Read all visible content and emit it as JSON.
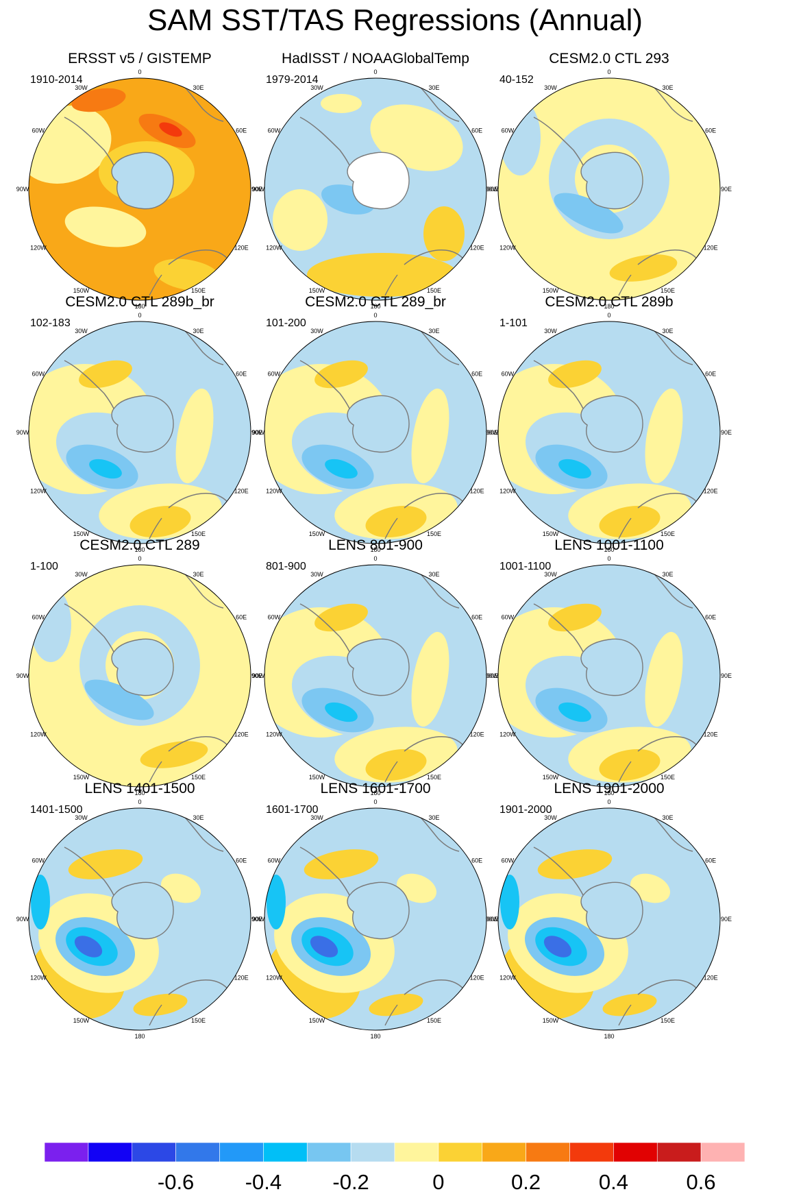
{
  "title": "SAM SST/TAS Regressions (Annual)",
  "colors": {
    "neg6": "#2323d9",
    "neg5": "#3a6fe6",
    "neg4": "#2e9cf2",
    "neg3": "#17c4f5",
    "neg2": "#7cc7f2",
    "neg1": "#b6dcf0",
    "pos1": "#fff59c",
    "pos2": "#fbd234",
    "pos3": "#f9a818",
    "pos4": "#f77a12",
    "pos5": "#f33a0c",
    "land": "#ffffff",
    "coast": "#7a7a7a"
  },
  "longitude_labels": [
    "0",
    "30E",
    "60E",
    "90E",
    "120E",
    "150E",
    "180",
    "150W",
    "120W",
    "90W",
    "60W",
    "30W"
  ],
  "panels": [
    {
      "title": "ERSST v5 / GISTEMP",
      "years": "1910-2014",
      "style": "obs1"
    },
    {
      "title": "HadISST / NOAAGlobalTemp",
      "years": "1979-2014",
      "style": "obs2"
    },
    {
      "title": "CESM2.0 CTL 293",
      "years": "40-152",
      "style": "weak"
    },
    {
      "title": "CESM2.0 CTL 289b_br",
      "years": "102-183",
      "style": "mod"
    },
    {
      "title": "CESM2.0 CTL 289_br",
      "years": "101-200",
      "style": "mod"
    },
    {
      "title": "CESM2.0 CTL 289b",
      "years": "1-101",
      "style": "mod"
    },
    {
      "title": "CESM2.0 CTL 289",
      "years": "1-100",
      "style": "weak"
    },
    {
      "title": "LENS 801-900",
      "years": "801-900",
      "style": "mod"
    },
    {
      "title": "LENS 1001-1100",
      "years": "1001-1100",
      "style": "mod"
    },
    {
      "title": "LENS 1401-1500",
      "years": "1401-1500",
      "style": "strong"
    },
    {
      "title": "LENS 1601-1700",
      "years": "1601-1700",
      "style": "strong"
    },
    {
      "title": "LENS 1901-2000",
      "years": "1901-2000",
      "style": "strong"
    }
  ],
  "colorbar": {
    "colors": [
      "#7b20ee",
      "#1202f5",
      "#2c48e6",
      "#3278ea",
      "#2299f8",
      "#01bff7",
      "#77c6f1",
      "#b6dcf0",
      "#fff59c",
      "#fbd234",
      "#f9a818",
      "#f77a12",
      "#f33a0c",
      "#e10202",
      "#c91c1c",
      "#feb2b2"
    ],
    "labels": [
      "-0.6",
      "-0.4",
      "-0.2",
      "0",
      "0.2",
      "0.4",
      "0.6"
    ]
  }
}
